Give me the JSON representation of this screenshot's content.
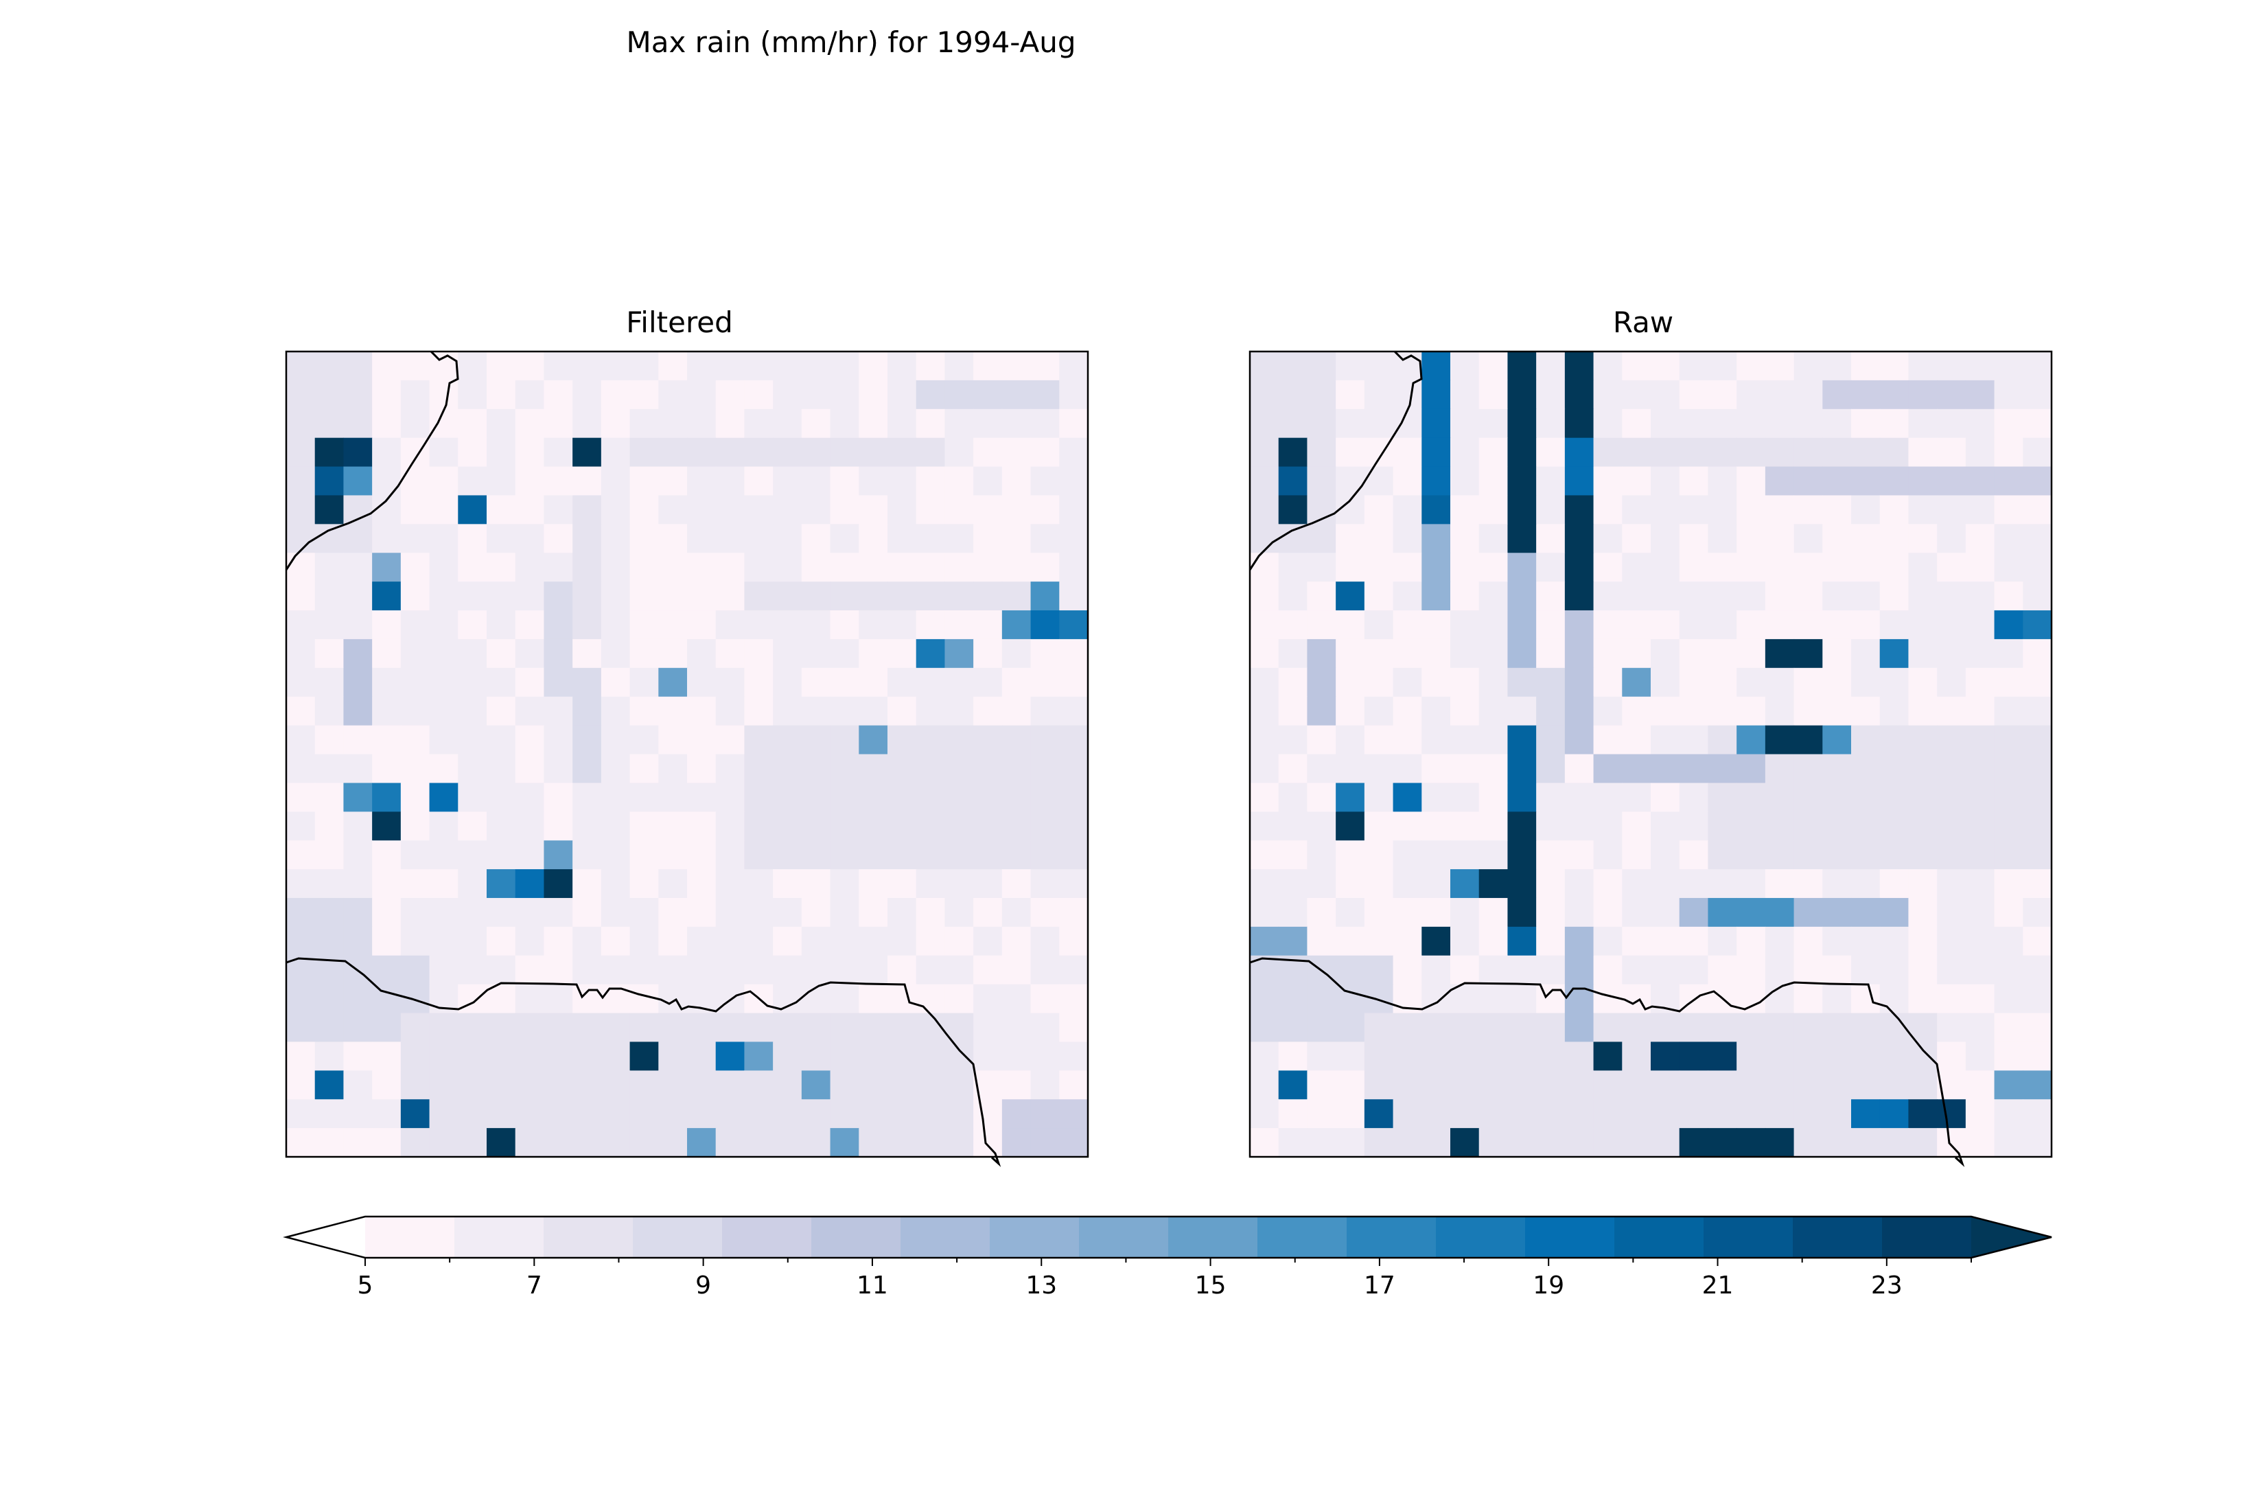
{
  "chart_data": {
    "type": "heatmap",
    "title": "Max rain (mm/hr) for 1994-Aug",
    "panels": [
      {
        "name": "Filtered",
        "grid": {
          "rows": 28,
          "cols": 28,
          "background_value": 5.5
        },
        "features": [
          {
            "kind": "block",
            "r0": 0,
            "c0": 0,
            "r1": 6,
            "c1": 2,
            "value": 7.6
          },
          {
            "kind": "block",
            "r0": 8,
            "c0": 9,
            "r1": 11,
            "c1": 9,
            "value": 8.4
          },
          {
            "kind": "block",
            "r0": 11,
            "c0": 10,
            "r1": 14,
            "c1": 10,
            "value": 8.0
          },
          {
            "kind": "block",
            "r0": 5,
            "c0": 10,
            "r1": 9,
            "c1": 10,
            "value": 7.2
          },
          {
            "kind": "block",
            "r0": 3,
            "c0": 12,
            "r1": 3,
            "c1": 22,
            "value": 7.2
          },
          {
            "kind": "block",
            "r0": 8,
            "c0": 16,
            "r1": 8,
            "c1": 25,
            "value": 7.4
          },
          {
            "kind": "block",
            "r0": 13,
            "c0": 16,
            "r1": 17,
            "c1": 27,
            "value": 7.6
          },
          {
            "kind": "block",
            "r0": 1,
            "c0": 22,
            "r1": 1,
            "c1": 26,
            "value": 8.0
          },
          {
            "kind": "block",
            "r0": 21,
            "c0": 0,
            "r1": 23,
            "c1": 4,
            "value": 8.8
          },
          {
            "kind": "block",
            "r0": 23,
            "c0": 4,
            "r1": 27,
            "c1": 9,
            "value": 7.8
          },
          {
            "kind": "block",
            "r0": 23,
            "c0": 10,
            "r1": 27,
            "c1": 23,
            "value": 7.0
          },
          {
            "kind": "block",
            "r0": 26,
            "c0": 25,
            "r1": 27,
            "c1": 27,
            "value": 9.6
          },
          {
            "kind": "block",
            "r0": 19,
            "c0": 0,
            "r1": 20,
            "c1": 2,
            "value": 8.5
          },
          {
            "kind": "block",
            "r0": 10,
            "c0": 2,
            "r1": 12,
            "c1": 2,
            "value": 10.0
          },
          {
            "kind": "cell",
            "r": 3,
            "c": 1,
            "value": 24
          },
          {
            "kind": "cell",
            "r": 3,
            "c": 2,
            "value": 22
          },
          {
            "kind": "cell",
            "r": 4,
            "c": 1,
            "value": 20
          },
          {
            "kind": "cell",
            "r": 5,
            "c": 1,
            "value": 24
          },
          {
            "kind": "cell",
            "r": 4,
            "c": 2,
            "value": 15
          },
          {
            "kind": "cell",
            "r": 3,
            "c": 10,
            "value": 24
          },
          {
            "kind": "cell",
            "r": 5,
            "c": 6,
            "value": 19
          },
          {
            "kind": "cell",
            "r": 8,
            "c": 3,
            "value": 19
          },
          {
            "kind": "cell",
            "r": 7,
            "c": 3,
            "value": 13
          },
          {
            "kind": "cell",
            "r": 8,
            "c": 26,
            "value": 15
          },
          {
            "kind": "cell",
            "r": 9,
            "c": 26,
            "value": 18
          },
          {
            "kind": "cell",
            "r": 9,
            "c": 27,
            "value": 17
          },
          {
            "kind": "cell",
            "r": 9,
            "c": 25,
            "value": 15
          },
          {
            "kind": "cell",
            "r": 10,
            "c": 22,
            "value": 17
          },
          {
            "kind": "cell",
            "r": 10,
            "c": 23,
            "value": 14
          },
          {
            "kind": "cell",
            "r": 11,
            "c": 13,
            "value": 14
          },
          {
            "kind": "cell",
            "r": 13,
            "c": 20,
            "value": 14
          },
          {
            "kind": "cell",
            "r": 15,
            "c": 2,
            "value": 15
          },
          {
            "kind": "cell",
            "r": 15,
            "c": 3,
            "value": 17
          },
          {
            "kind": "cell",
            "r": 15,
            "c": 5,
            "value": 18
          },
          {
            "kind": "cell",
            "r": 16,
            "c": 3,
            "value": 24
          },
          {
            "kind": "cell",
            "r": 18,
            "c": 7,
            "value": 16
          },
          {
            "kind": "cell",
            "r": 18,
            "c": 8,
            "value": 18
          },
          {
            "kind": "cell",
            "r": 18,
            "c": 9,
            "value": 24
          },
          {
            "kind": "cell",
            "r": 17,
            "c": 9,
            "value": 14
          },
          {
            "kind": "cell",
            "r": 24,
            "c": 12,
            "value": 24
          },
          {
            "kind": "cell",
            "r": 24,
            "c": 15,
            "value": 18
          },
          {
            "kind": "cell",
            "r": 24,
            "c": 16,
            "value": 14
          },
          {
            "kind": "cell",
            "r": 25,
            "c": 1,
            "value": 19
          },
          {
            "kind": "cell",
            "r": 26,
            "c": 4,
            "value": 20
          },
          {
            "kind": "cell",
            "r": 27,
            "c": 7,
            "value": 24
          },
          {
            "kind": "cell",
            "r": 25,
            "c": 18,
            "value": 14
          },
          {
            "kind": "cell",
            "r": 27,
            "c": 14,
            "value": 14
          },
          {
            "kind": "cell",
            "r": 27,
            "c": 19,
            "value": 14
          }
        ]
      },
      {
        "name": "Raw",
        "grid": {
          "rows": 28,
          "cols": 28,
          "background_value": 5.5
        },
        "features": [
          {
            "kind": "block",
            "r0": 0,
            "c0": 0,
            "r1": 6,
            "c1": 2,
            "value": 7.6
          },
          {
            "kind": "block",
            "r0": 8,
            "c0": 9,
            "r1": 11,
            "c1": 9,
            "value": 8.4
          },
          {
            "kind": "block",
            "r0": 11,
            "c0": 10,
            "r1": 14,
            "c1": 10,
            "value": 8.0
          },
          {
            "kind": "block",
            "r0": 3,
            "c0": 12,
            "r1": 3,
            "c1": 22,
            "value": 7.2
          },
          {
            "kind": "block",
            "r0": 13,
            "c0": 16,
            "r1": 17,
            "c1": 27,
            "value": 7.6
          },
          {
            "kind": "block",
            "r0": 21,
            "c0": 0,
            "r1": 23,
            "c1": 4,
            "value": 8.8
          },
          {
            "kind": "block",
            "r0": 23,
            "c0": 4,
            "r1": 27,
            "c1": 9,
            "value": 7.8
          },
          {
            "kind": "block",
            "r0": 23,
            "c0": 10,
            "r1": 27,
            "c1": 23,
            "value": 7.0
          },
          {
            "kind": "block",
            "r0": 10,
            "c0": 2,
            "r1": 12,
            "c1": 2,
            "value": 10.0
          },
          {
            "kind": "block",
            "r0": 0,
            "c0": 6,
            "r1": 5,
            "c1": 6,
            "value": 18
          },
          {
            "kind": "block",
            "r0": 6,
            "c0": 6,
            "r1": 8,
            "c1": 6,
            "value": 12
          },
          {
            "kind": "block",
            "r0": 0,
            "c0": 9,
            "r1": 6,
            "c1": 9,
            "value": 24
          },
          {
            "kind": "block",
            "r0": 7,
            "c0": 9,
            "r1": 10,
            "c1": 9,
            "value": 11
          },
          {
            "kind": "block",
            "r0": 0,
            "c0": 11,
            "r1": 8,
            "c1": 11,
            "value": 24
          },
          {
            "kind": "block",
            "r0": 3,
            "c0": 11,
            "r1": 4,
            "c1": 11,
            "value": 18
          },
          {
            "kind": "block",
            "r0": 9,
            "c0": 11,
            "r1": 13,
            "c1": 11,
            "value": 10
          },
          {
            "kind": "block",
            "r0": 13,
            "c0": 9,
            "r1": 20,
            "c1": 9,
            "value": 19
          },
          {
            "kind": "block",
            "r0": 16,
            "c0": 9,
            "r1": 19,
            "c1": 9,
            "value": 24
          },
          {
            "kind": "block",
            "r0": 20,
            "c0": 11,
            "r1": 23,
            "c1": 11,
            "value": 11
          },
          {
            "kind": "block",
            "r0": 4,
            "c0": 1,
            "r1": 5,
            "c1": 1,
            "value": 20
          },
          {
            "kind": "block",
            "r0": 1,
            "c0": 20,
            "r1": 1,
            "c1": 25,
            "value": 9.5
          },
          {
            "kind": "block",
            "r0": 4,
            "c0": 18,
            "r1": 4,
            "c1": 27,
            "value": 9.0
          },
          {
            "kind": "block",
            "r0": 14,
            "c0": 12,
            "r1": 14,
            "c1": 17,
            "value": 10
          },
          {
            "kind": "block",
            "r0": 13,
            "c0": 17,
            "r1": 13,
            "c1": 20,
            "value": 15
          },
          {
            "kind": "block",
            "r0": 13,
            "c0": 18,
            "r1": 13,
            "c1": 19,
            "value": 24
          },
          {
            "kind": "block",
            "r0": 19,
            "c0": 15,
            "r1": 19,
            "c1": 22,
            "value": 11
          },
          {
            "kind": "block",
            "r0": 19,
            "c0": 16,
            "r1": 19,
            "c1": 18,
            "value": 15
          },
          {
            "kind": "block",
            "r0": 10,
            "c0": 18,
            "r1": 10,
            "c1": 19,
            "value": 24
          },
          {
            "kind": "block",
            "r0": 24,
            "c0": 14,
            "r1": 24,
            "c1": 16,
            "value": 23
          },
          {
            "kind": "block",
            "r0": 27,
            "c0": 15,
            "r1": 27,
            "c1": 17,
            "value": 24
          },
          {
            "kind": "block",
            "r0": 26,
            "c0": 21,
            "r1": 26,
            "c1": 24,
            "value": 18
          },
          {
            "kind": "block",
            "r0": 26,
            "c0": 23,
            "r1": 26,
            "c1": 24,
            "value": 22
          },
          {
            "kind": "block",
            "r0": 25,
            "c0": 26,
            "r1": 25,
            "c1": 27,
            "value": 14
          },
          {
            "kind": "block",
            "r0": 20,
            "c0": 0,
            "r1": 20,
            "c1": 1,
            "value": 13
          },
          {
            "kind": "cell",
            "r": 3,
            "c": 1,
            "value": 24
          },
          {
            "kind": "cell",
            "r": 5,
            "c": 1,
            "value": 24
          },
          {
            "kind": "cell",
            "r": 5,
            "c": 6,
            "value": 19
          },
          {
            "kind": "cell",
            "r": 8,
            "c": 3,
            "value": 19
          },
          {
            "kind": "cell",
            "r": 9,
            "c": 26,
            "value": 18
          },
          {
            "kind": "cell",
            "r": 9,
            "c": 27,
            "value": 17
          },
          {
            "kind": "cell",
            "r": 10,
            "c": 22,
            "value": 17
          },
          {
            "kind": "cell",
            "r": 11,
            "c": 13,
            "value": 14
          },
          {
            "kind": "cell",
            "r": 15,
            "c": 3,
            "value": 17
          },
          {
            "kind": "cell",
            "r": 15,
            "c": 5,
            "value": 18
          },
          {
            "kind": "cell",
            "r": 16,
            "c": 3,
            "value": 24
          },
          {
            "kind": "cell",
            "r": 18,
            "c": 7,
            "value": 16
          },
          {
            "kind": "cell",
            "r": 18,
            "c": 8,
            "value": 24
          },
          {
            "kind": "cell",
            "r": 20,
            "c": 6,
            "value": 24
          },
          {
            "kind": "cell",
            "r": 24,
            "c": 12,
            "value": 24
          },
          {
            "kind": "cell",
            "r": 25,
            "c": 1,
            "value": 19
          },
          {
            "kind": "cell",
            "r": 26,
            "c": 4,
            "value": 20
          },
          {
            "kind": "cell",
            "r": 27,
            "c": 7,
            "value": 24
          },
          {
            "kind": "cell",
            "r": 27,
            "c": 18,
            "value": 24
          }
        ]
      }
    ],
    "colorbar": {
      "ticks": [
        5,
        7,
        9,
        11,
        13,
        15,
        17,
        19,
        21,
        23
      ],
      "min": 5,
      "max": 24,
      "step": 1,
      "extend": "both",
      "colors": [
        "#fdf3f9",
        "#f1ecf5",
        "#e6e3ef",
        "#dadbeb",
        "#cdcfe5",
        "#bcc5df",
        "#a9bcdb",
        "#93b3d6",
        "#7eaad0",
        "#66a0ca",
        "#4693c4",
        "#2b85bc",
        "#187ab6",
        "#056fb2",
        "#0364a0",
        "#035890",
        "#02497a",
        "#023d66"
      ],
      "under_color": "#ffffff",
      "over_color": "#023858"
    }
  }
}
